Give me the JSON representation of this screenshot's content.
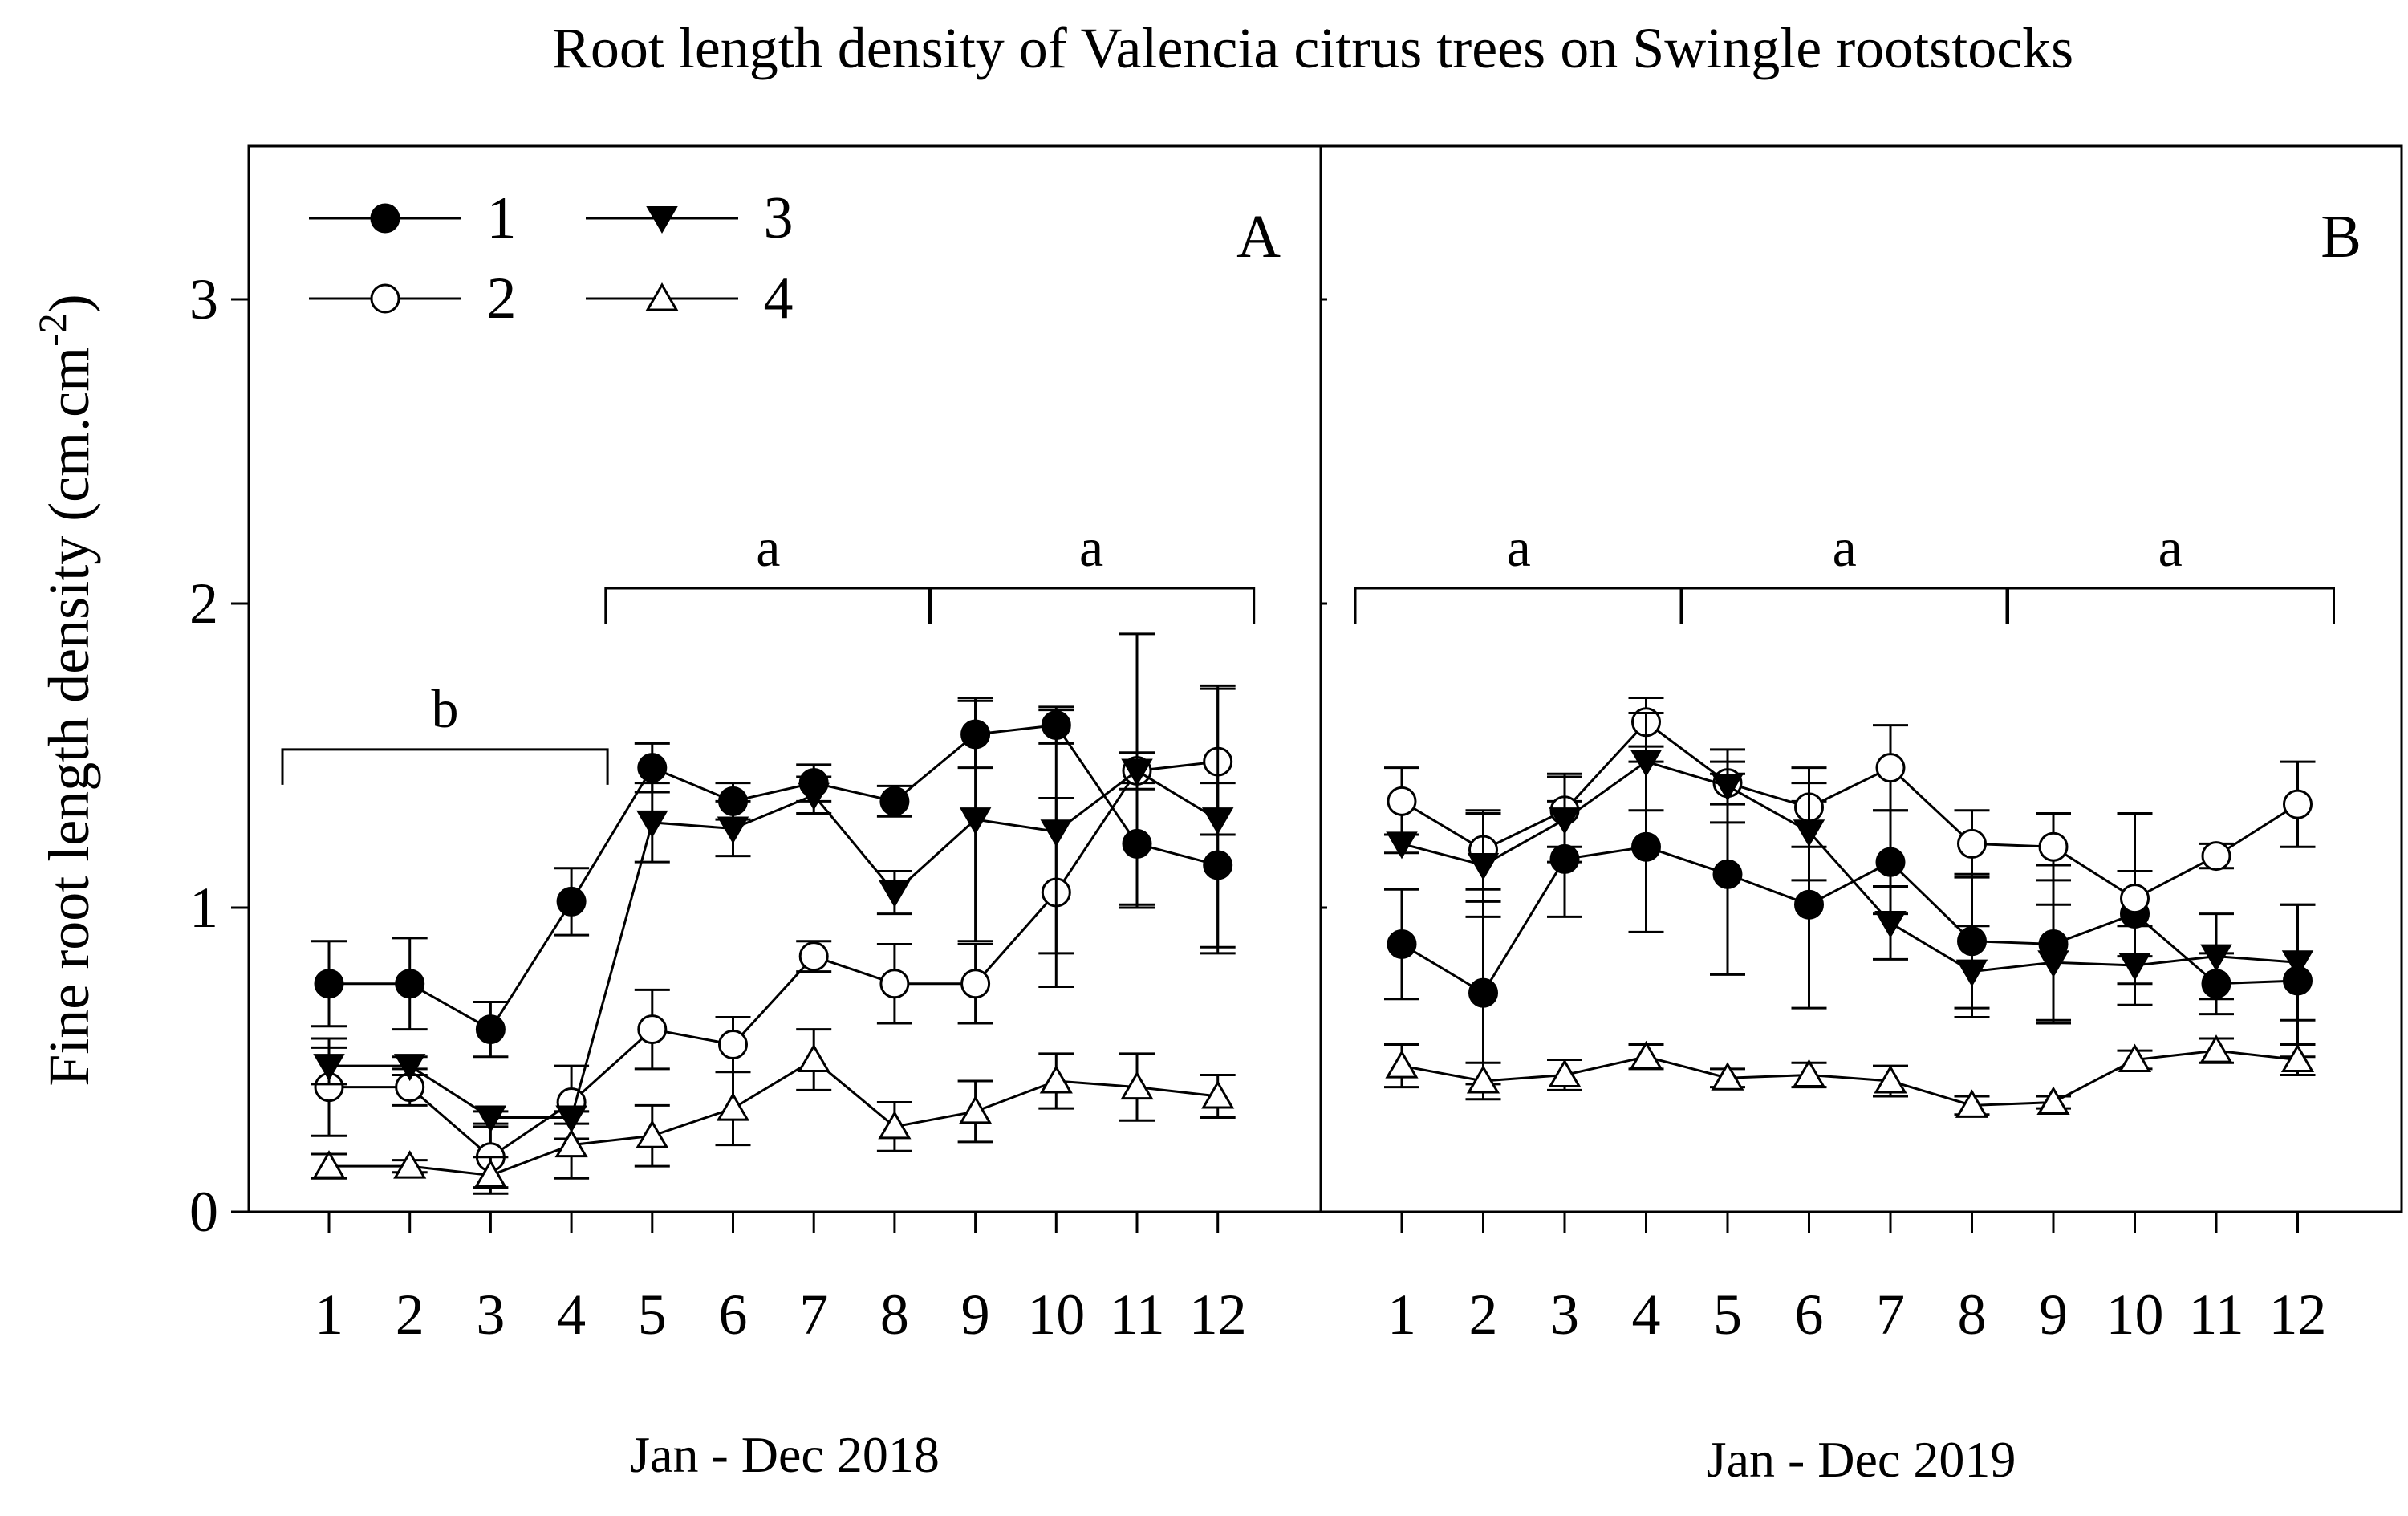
{
  "chart_data": {
    "type": "line",
    "title": "Root length density of Valencia citrus trees on Swingle rootstocks",
    "ylabel": "Fine root length density (cm.cm",
    "ylabel_sup": "-2",
    "ylabel_close": ")",
    "ylim": [
      0,
      3.5
    ],
    "yticks": [
      "0",
      "1",
      "2",
      "3"
    ],
    "legend": {
      "placement": "top-left of panel A",
      "entries": [
        {
          "label": "1",
          "marker": "filled-circle"
        },
        {
          "label": "2",
          "marker": "open-circle"
        },
        {
          "label": "3",
          "marker": "filled-triangle-down"
        },
        {
          "label": "4",
          "marker": "open-triangle-up"
        }
      ]
    },
    "panels": [
      {
        "id": "A",
        "xlabel": "Jan - Dec 2018",
        "x": [
          "1",
          "2",
          "3",
          "4",
          "5",
          "6",
          "7",
          "8",
          "9",
          "10",
          "11",
          "12"
        ],
        "series": [
          {
            "name": "1",
            "marker": "filled-circle",
            "values": [
              0.75,
              0.75,
              0.6,
              1.02,
              1.46,
              1.35,
              1.41,
              1.35,
              1.57,
              1.6,
              1.21,
              1.14
            ],
            "errors": [
              0.14,
              0.15,
              0.09,
              0.11,
              0.08,
              0.06,
              0.06,
              0.05,
              0.11,
              0.06,
              0.2,
              0.27
            ]
          },
          {
            "name": "2",
            "marker": "open-circle",
            "values": [
              0.41,
              0.41,
              0.18,
              0.36,
              0.6,
              0.55,
              0.84,
              0.75,
              0.75,
              1.05,
              1.45,
              1.48
            ],
            "errors": [
              0.16,
              0.06,
              0.1,
              0.12,
              0.13,
              0.09,
              0.05,
              0.13,
              0.13,
              0.31,
              0.06,
              0.24
            ]
          },
          {
            "name": "3",
            "marker": "filled-triangle-down",
            "values": [
              0.48,
              0.48,
              0.31,
              0.31,
              1.28,
              1.26,
              1.37,
              1.05,
              1.29,
              1.25,
              1.45,
              1.29
            ],
            "errors": [
              0.06,
              0.03,
              0.02,
              0.02,
              0.13,
              0.09,
              0.06,
              0.07,
              0.4,
              0.4,
              0.45,
              0.44
            ]
          },
          {
            "name": "4",
            "marker": "open-triangle-up",
            "values": [
              0.15,
              0.15,
              0.12,
              0.22,
              0.25,
              0.34,
              0.5,
              0.28,
              0.33,
              0.43,
              0.41,
              0.38
            ],
            "errors": [
              0.04,
              0.02,
              0.06,
              0.11,
              0.1,
              0.12,
              0.1,
              0.08,
              0.1,
              0.09,
              0.11,
              0.07
            ]
          }
        ],
        "significance": [
          {
            "label": "b",
            "from": 1,
            "to": 4,
            "level": 1.52
          },
          {
            "label": "a",
            "from": 5,
            "to": 8,
            "level": 2.05
          },
          {
            "label": "a",
            "from": 9,
            "to": 12,
            "level": 2.05
          }
        ]
      },
      {
        "id": "B",
        "xlabel": "Jan - Dec 2019",
        "x": [
          "1",
          "2",
          "3",
          "4",
          "5",
          "6",
          "7",
          "8",
          "9",
          "10",
          "11",
          "12"
        ],
        "series": [
          {
            "name": "1",
            "marker": "filled-circle",
            "values": [
              0.88,
              0.72,
              1.16,
              1.2,
              1.11,
              1.01,
              1.15,
              0.89,
              0.88,
              0.98,
              0.75,
              0.76
            ],
            "errors": [
              0.18,
              0.3,
              0.19,
              0.28,
              0.33,
              0.34,
              0.17,
              0.22,
              0.26,
              0.14,
              0.1,
              0.25
            ]
          },
          {
            "name": "2",
            "marker": "open-circle",
            "values": [
              1.35,
              1.19,
              1.32,
              1.61,
              1.41,
              1.33,
              1.46,
              1.21,
              1.2,
              1.03,
              1.17,
              1.34
            ],
            "errors": [
              0.11,
              0.13,
              0.12,
              0.08,
              0.07,
              0.13,
              0.14,
              0.11,
              0.11,
              0.28,
              0.04,
              0.14
            ]
          },
          {
            "name": "3",
            "marker": "filled-triangle-down",
            "values": [
              1.21,
              1.14,
              1.29,
              1.48,
              1.4,
              1.25,
              0.95,
              0.79,
              0.82,
              0.81,
              0.84,
              0.82
            ],
            "errors": [
              0.03,
              0.17,
              0.14,
              0.16,
              0.12,
              0.16,
              0.12,
              0.15,
              0.19,
              0.13,
              0.14,
              0.19
            ]
          },
          {
            "name": "4",
            "marker": "open-triangle-up",
            "values": [
              0.48,
              0.43,
              0.45,
              0.51,
              0.44,
              0.45,
              0.43,
              0.35,
              0.36,
              0.5,
              0.53,
              0.5
            ],
            "errors": [
              0.07,
              0.06,
              0.05,
              0.04,
              0.03,
              0.04,
              0.05,
              0.03,
              0.02,
              0.03,
              0.04,
              0.05
            ]
          }
        ],
        "significance": [
          {
            "label": "a",
            "from": 1,
            "to": 4,
            "level": 2.05
          },
          {
            "label": "a",
            "from": 5,
            "to": 8,
            "level": 2.05
          },
          {
            "label": "a",
            "from": 9,
            "to": 12,
            "level": 2.05
          }
        ]
      }
    ]
  }
}
